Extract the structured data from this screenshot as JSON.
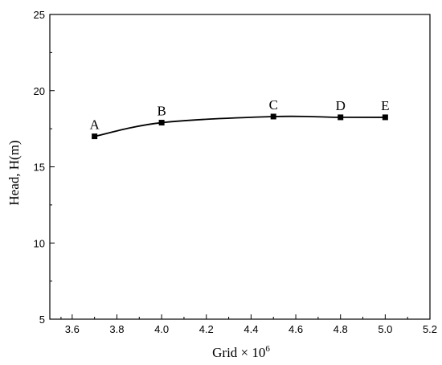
{
  "chart_data": {
    "type": "line",
    "title": "",
    "xlabel": "Grid × 10",
    "xlabel_exponent": "6",
    "ylabel": "Head, H(m)",
    "xlim": [
      3.5,
      5.2
    ],
    "ylim": [
      5,
      25
    ],
    "x_ticks": [
      "3.6",
      "3.8",
      "4.0",
      "4.2",
      "4.4",
      "4.6",
      "4.8",
      "5.0",
      "5.2"
    ],
    "y_ticks": [
      "5",
      "10",
      "15",
      "20",
      "25"
    ],
    "grid": false,
    "legend": "none",
    "line_color": "#000000",
    "series": [
      {
        "marker": "square",
        "points": [
          {
            "label": "A",
            "x": 3.7,
            "y": 17.0
          },
          {
            "label": "B",
            "x": 4.0,
            "y": 17.9
          },
          {
            "label": "C",
            "x": 4.5,
            "y": 18.3
          },
          {
            "label": "D",
            "x": 4.8,
            "y": 18.25
          },
          {
            "label": "E",
            "x": 5.0,
            "y": 18.25
          }
        ]
      }
    ]
  }
}
